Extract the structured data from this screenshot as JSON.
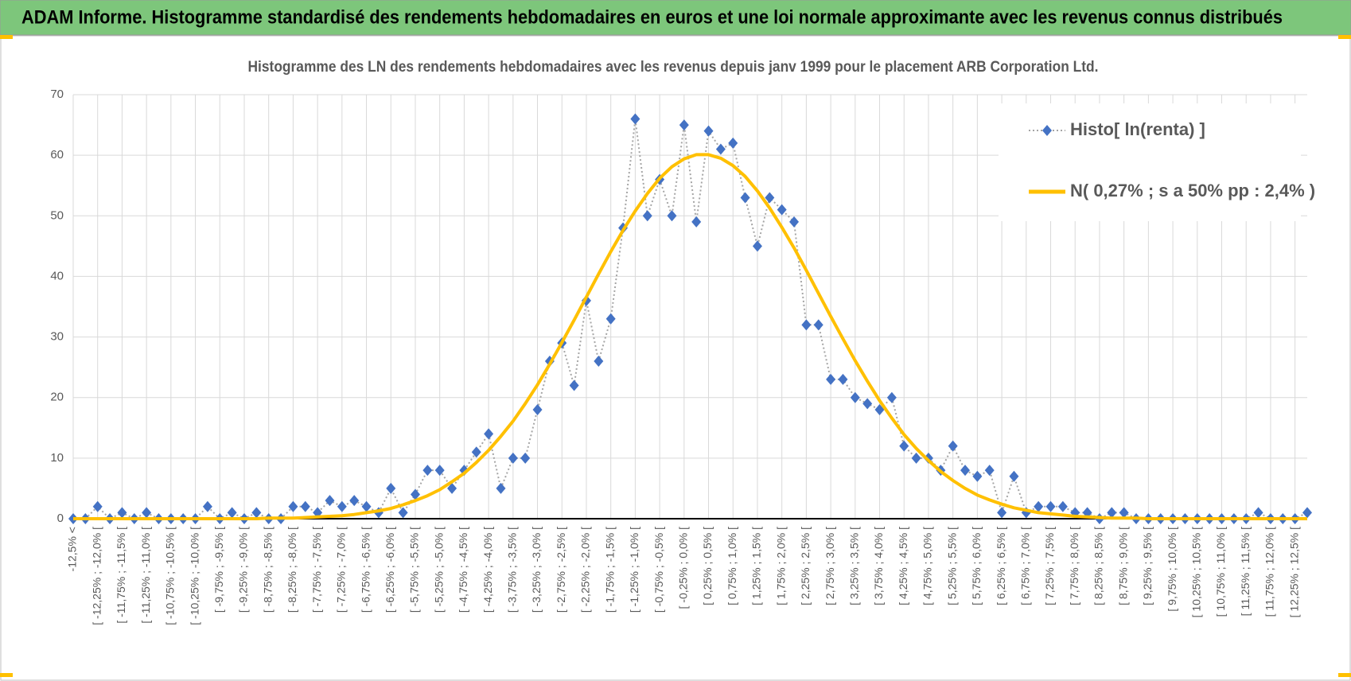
{
  "header": {
    "title": "ADAM Informe. Histogramme standardisé des rendements hebdomadaires en euros et une loi normale approximante avec les revenus connus distribués"
  },
  "chart_data": {
    "type": "line",
    "title": "Histogramme  des LN des rendements hebdomadaires avec les revenus depuis janv 1999 pour le placement ARB Corporation Ltd.",
    "categories": [
      "-12,5% <",
      null,
      "[ -12,25% ; -12,0% [",
      null,
      "[ -11,75% ; -11,5% [",
      null,
      "[ -11,25% ; -11,0% [",
      null,
      "[ -10,75% ; -10,5% [",
      null,
      "[ -10,25% ; -10,0% [",
      null,
      "[ -9,75% ; -9,5% [",
      null,
      "[ -9,25% ; -9,0% [",
      null,
      "[ -8,75% ; -8,5% [",
      null,
      "[ -8,25% ; -8,0% [",
      null,
      "[ -7,75% ; -7,5% [",
      null,
      "[ -7,25% ; -7,0% [",
      null,
      "[ -6,75% ; -6,5% [",
      null,
      "[ -6,25% ; -6,0% [",
      null,
      "[ -5,75% ; -5,5% [",
      null,
      "[ -5,25% ; -5,0% [",
      null,
      "[ -4,75% ; -4,5% [",
      null,
      "[ -4,25% ; -4,0% [",
      null,
      "[ -3,75% ; -3,5% [",
      null,
      "[ -3,25% ; -3,0% [",
      null,
      "[ -2,75% ; -2,5% [",
      null,
      "[ -2,25% ; -2,0% [",
      null,
      "[ -1,75% ; -1,5% [",
      null,
      "[ -1,25% ; -1,0% [",
      null,
      "[ -0,75% ; -0,5% [",
      null,
      "[ -0,25% ; 0,0% [",
      null,
      "[ 0,25% ; 0,5% [",
      null,
      "[ 0,75% ; 1,0% [",
      null,
      "[ 1,25% ; 1,5% [",
      null,
      "[ 1,75% ; 2,0% [",
      null,
      "[ 2,25% ; 2,5% [",
      null,
      "[ 2,75% ; 3,0% [",
      null,
      "[ 3,25% ; 3,5% [",
      null,
      "[ 3,75% ; 4,0% [",
      null,
      "[ 4,25% ; 4,5% [",
      null,
      "[ 4,75% ; 5,0% [",
      null,
      "[ 5,25% ; 5,5% [",
      null,
      "[ 5,75% ; 6,0% [",
      null,
      "[ 6,25% ; 6,5% [",
      null,
      "[ 6,75% ; 7,0% [",
      null,
      "[ 7,25% ; 7,5% [",
      null,
      "[ 7,75% ; 8,0% [",
      null,
      "[ 8,25% ; 8,5% [",
      null,
      "[ 8,75% ; 9,0% [",
      null,
      "[ 9,25% ; 9,5% [",
      null,
      "[ 9,75% ; 10,0% [",
      null,
      "[ 10,25% ; 10,5% [",
      null,
      "[ 10,75% ; 11,0% [",
      null,
      "[ 11,25% ; 11,5% [",
      null,
      "[ 11,75% ; 12,0% [",
      null,
      "[ 12,25% ; 12,5% [",
      null
    ],
    "series": [
      {
        "name": "Histo[ ln(renta) ]",
        "color": "#4472c4",
        "line_color": "#a5a5a5",
        "line_style": "dotted",
        "marker": "diamond",
        "values": [
          0,
          0,
          2,
          0,
          1,
          0,
          1,
          0,
          0,
          0,
          0,
          2,
          0,
          1,
          0,
          1,
          0,
          0,
          2,
          2,
          1,
          3,
          2,
          3,
          2,
          1,
          5,
          1,
          4,
          8,
          8,
          5,
          8,
          11,
          14,
          5,
          10,
          10,
          18,
          26,
          29,
          22,
          36,
          26,
          33,
          48,
          66,
          50,
          56,
          50,
          65,
          49,
          64,
          61,
          62,
          53,
          45,
          53,
          51,
          49,
          32,
          32,
          23,
          23,
          20,
          19,
          18,
          20,
          12,
          10,
          10,
          8,
          12,
          8,
          7,
          8,
          1,
          7,
          1,
          2,
          2,
          2,
          1,
          1,
          0,
          1,
          1,
          0,
          0,
          0,
          0,
          0,
          0,
          0,
          0,
          0,
          0,
          1,
          0,
          0,
          0,
          1
        ]
      },
      {
        "name": "N( 0,27% ; s a 50% pp : 2,4% )",
        "color": "#ffc000",
        "line_style": "solid",
        "marker": "none",
        "values": [
          0,
          0,
          0,
          0,
          0,
          0,
          0,
          0,
          0,
          0,
          0,
          0,
          0,
          0,
          0,
          0,
          0.1,
          0.1,
          0.1,
          0.2,
          0.3,
          0.4,
          0.5,
          0.7,
          1.0,
          1.3,
          1.7,
          2.3,
          3.0,
          3.8,
          4.8,
          6.1,
          7.5,
          9.3,
          11.3,
          13.6,
          16.1,
          19.0,
          22.1,
          25.5,
          29.1,
          32.8,
          36.6,
          40.4,
          44.1,
          47.6,
          50.8,
          53.7,
          56.2,
          58.1,
          59.4,
          60.1,
          60.1,
          59.5,
          58.3,
          56.5,
          54.1,
          51.3,
          48.1,
          44.7,
          41.0,
          37.2,
          33.4,
          29.7,
          26.1,
          22.7,
          19.5,
          16.6,
          13.9,
          11.6,
          9.6,
          7.8,
          6.3,
          5.0,
          3.9,
          3.1,
          2.4,
          1.8,
          1.4,
          1.0,
          0.8,
          0.6,
          0.4,
          0.3,
          0.2,
          0.1,
          0.1,
          0.1,
          0,
          0,
          0,
          0,
          0,
          0,
          0,
          0,
          0,
          0,
          0,
          0,
          0,
          0
        ]
      }
    ],
    "ylim": [
      0,
      70
    ],
    "yticks": [
      0,
      10,
      20,
      30,
      40,
      50,
      60,
      70
    ],
    "grid": true,
    "legend": "top-right"
  }
}
